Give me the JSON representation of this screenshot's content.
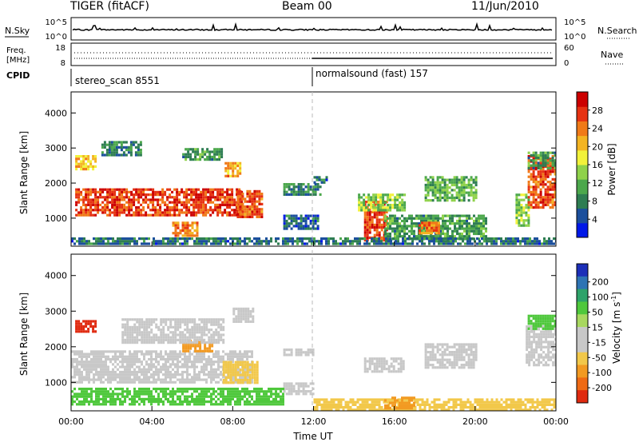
{
  "header": {
    "station": "TIGER (fitACF)",
    "beam": "Beam 00",
    "date": "11/Jun/2010"
  },
  "nsky_panel": {
    "left_label": "N.Sky",
    "right_label": "N.Search",
    "left_ticks": [
      "10^5",
      "10^0"
    ],
    "right_ticks": [
      "10^5",
      "10^0"
    ]
  },
  "freq_panel": {
    "left_label_1": "Freq.",
    "left_label_2": "[MHz]",
    "right_label": "Nave",
    "left_ticks": [
      "18",
      "8"
    ],
    "right_ticks": [
      "60",
      "0"
    ]
  },
  "cpid_panel": {
    "label": "CPID",
    "segments": [
      {
        "name": "stereo_scan 8551",
        "start_hour": 0,
        "end_hour": 12
      },
      {
        "name": "normalsound (fast) 157",
        "start_hour": 12,
        "end_hour": 24
      }
    ]
  },
  "chart_data": [
    {
      "type": "heatmap",
      "name": "Power",
      "xlabel": "",
      "ylabel": "Slant Range [km]",
      "xlim": [
        0,
        24
      ],
      "ylim": [
        200,
        4600
      ],
      "yticks": [
        "1000",
        "2000",
        "3000",
        "4000"
      ],
      "colorbar": {
        "label": "Power [dB]",
        "ticks": [
          "4",
          "8",
          "12",
          "16",
          "20",
          "24",
          "28"
        ],
        "range": [
          0,
          32
        ],
        "colors": [
          "#0018e8",
          "#1b4f9c",
          "#2e7d52",
          "#4ca84c",
          "#8fd24a",
          "#f2f23a",
          "#f3b422",
          "#f07a18",
          "#e63212",
          "#cc0000"
        ]
      },
      "regions": [
        {
          "t0": 0.2,
          "t1": 8.5,
          "r0": 1050,
          "r1": 1850,
          "v": 27
        },
        {
          "t0": 0.2,
          "t1": 1.2,
          "r0": 2400,
          "r1": 2800,
          "v": 20
        },
        {
          "t0": 1.5,
          "t1": 3.5,
          "r0": 2800,
          "r1": 3200,
          "v": 8
        },
        {
          "t0": 5.5,
          "t1": 7.5,
          "r0": 2700,
          "r1": 3000,
          "v": 10
        },
        {
          "t0": 7.6,
          "t1": 8.4,
          "r0": 2200,
          "r1": 2600,
          "v": 22
        },
        {
          "t0": 8.2,
          "t1": 9.5,
          "r0": 1000,
          "r1": 1800,
          "v": 26
        },
        {
          "t0": 5.0,
          "t1": 6.2,
          "r0": 500,
          "r1": 900,
          "v": 24
        },
        {
          "t0": 10.5,
          "t1": 12.3,
          "r0": 1700,
          "r1": 2000,
          "v": 8
        },
        {
          "t0": 12.0,
          "t1": 12.6,
          "r0": 2050,
          "r1": 2200,
          "v": 6
        },
        {
          "t0": 10.5,
          "t1": 12.2,
          "r0": 700,
          "r1": 1100,
          "v": 6
        },
        {
          "t0": 14.5,
          "t1": 15.6,
          "r0": 400,
          "r1": 1500,
          "v": 27
        },
        {
          "t0": 14.2,
          "t1": 16.5,
          "r0": 1200,
          "r1": 1700,
          "v": 14
        },
        {
          "t0": 15.5,
          "t1": 20.5,
          "r0": 400,
          "r1": 1100,
          "v": 10
        },
        {
          "t0": 17.2,
          "t1": 18.2,
          "r0": 600,
          "r1": 900,
          "v": 24
        },
        {
          "t0": 17.5,
          "t1": 20.0,
          "r0": 1500,
          "r1": 2200,
          "v": 12
        },
        {
          "t0": 22.0,
          "t1": 22.6,
          "r0": 800,
          "r1": 1700,
          "v": 14
        },
        {
          "t0": 22.6,
          "t1": 24.0,
          "r0": 1300,
          "r1": 2800,
          "v": 26
        },
        {
          "t0": 22.6,
          "t1": 24.0,
          "r0": 2400,
          "r1": 2900,
          "v": 10
        },
        {
          "t0": 0.0,
          "t1": 24.0,
          "r0": 250,
          "r1": 450,
          "v": 7
        }
      ]
    },
    {
      "type": "heatmap",
      "name": "Velocity",
      "xlabel": "Time UT",
      "ylabel": "Slant Range [km]",
      "xlim": [
        0,
        24
      ],
      "ylim": [
        200,
        4600
      ],
      "yticks": [
        "1000",
        "2000",
        "3000",
        "4000"
      ],
      "xticks": [
        "00:00",
        "04:00",
        "08:00",
        "12:00",
        "16:00",
        "20:00",
        "00:00"
      ],
      "colorbar": {
        "label": "Velocity [m s",
        "label_sup": "-1",
        "label_end": "]",
        "ticks": [
          "200",
          "100",
          "50",
          "15",
          "-15",
          "-50",
          "-100",
          "-200"
        ],
        "colors": [
          "#1c2fb8",
          "#2e74b4",
          "#2ea36a",
          "#4fc83c",
          "#a8d860",
          "#c8c8c8",
          "#c8c8c8",
          "#f2c84a",
          "#f29a22",
          "#ef6a14",
          "#e02a10"
        ]
      },
      "regions": [
        {
          "t0": 0.0,
          "t1": 9.0,
          "r0": 1000,
          "r1": 1900,
          "v": 0
        },
        {
          "t0": 0.2,
          "t1": 1.2,
          "r0": 2450,
          "r1": 2750,
          "v": -220
        },
        {
          "t0": 5.5,
          "t1": 7.0,
          "r0": 1900,
          "r1": 2200,
          "v": -80
        },
        {
          "t0": 7.5,
          "t1": 9.2,
          "r0": 1000,
          "r1": 1600,
          "v": -40
        },
        {
          "t0": 2.5,
          "t1": 7.5,
          "r0": 2100,
          "r1": 2800,
          "v": 0
        },
        {
          "t0": 8.0,
          "t1": 9.0,
          "r0": 2700,
          "r1": 3100,
          "v": 0
        },
        {
          "t0": 10.5,
          "t1": 12.0,
          "r0": 1750,
          "r1": 1950,
          "v": 0
        },
        {
          "t0": 10.5,
          "t1": 12.0,
          "r0": 700,
          "r1": 1000,
          "v": 0
        },
        {
          "t0": 14.5,
          "t1": 16.5,
          "r0": 1300,
          "r1": 1700,
          "v": 0
        },
        {
          "t0": 17.5,
          "t1": 20.0,
          "r0": 1400,
          "r1": 2100,
          "v": 0
        },
        {
          "t0": 22.5,
          "t1": 24.0,
          "r0": 1500,
          "r1": 2600,
          "v": 0
        },
        {
          "t0": 22.6,
          "t1": 24.0,
          "r0": 2500,
          "r1": 2900,
          "v": 30
        },
        {
          "t0": 0.0,
          "t1": 10.5,
          "r0": 350,
          "r1": 850,
          "v": 30
        },
        {
          "t0": 12.0,
          "t1": 24.0,
          "r0": 250,
          "r1": 550,
          "v": -30
        },
        {
          "t0": 15.5,
          "t1": 17.0,
          "r0": 300,
          "r1": 600,
          "v": -60
        }
      ]
    }
  ]
}
